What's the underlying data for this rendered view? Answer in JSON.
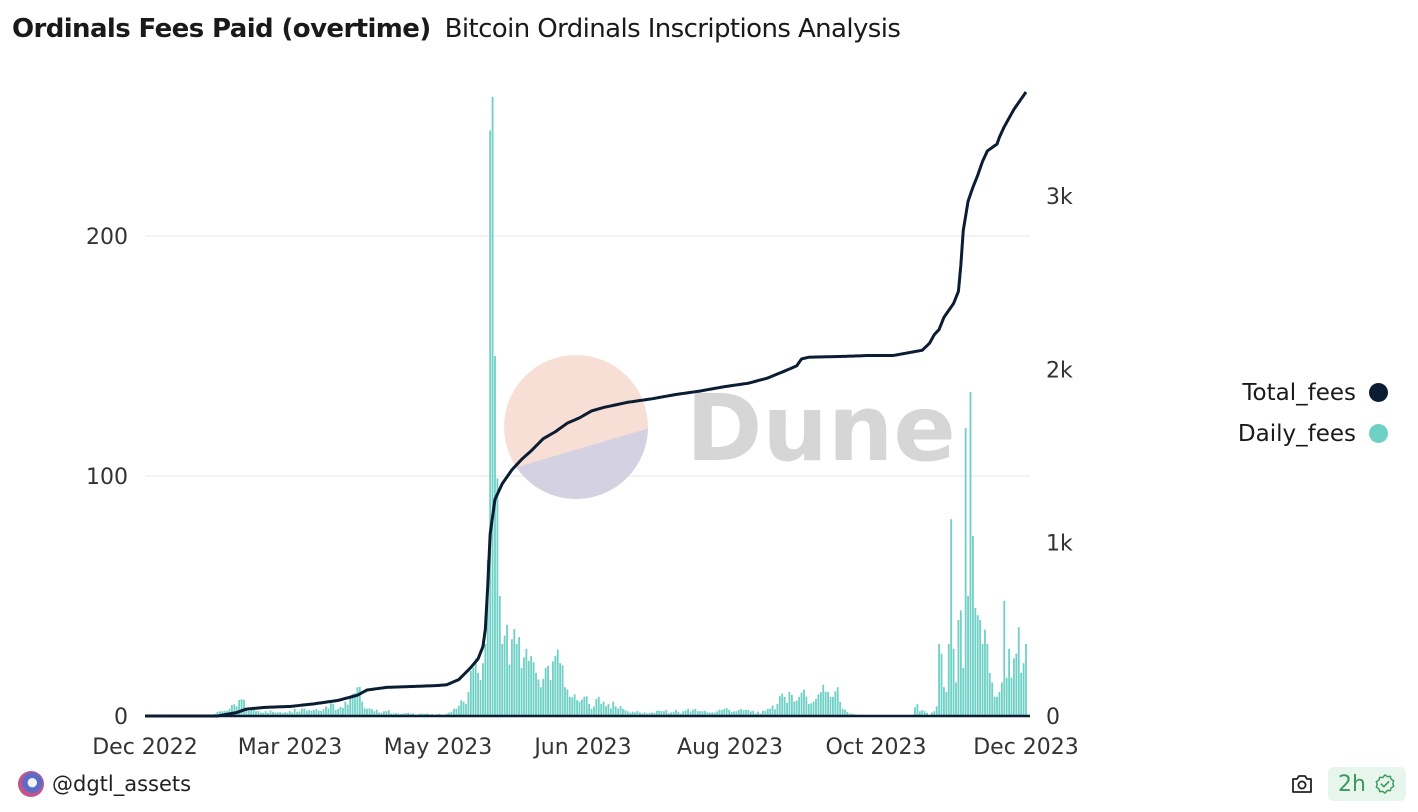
{
  "header": {
    "title": "Ordinals Fees Paid (overtime)",
    "subtitle": "Bitcoin Ordinals Inscriptions Analysis"
  },
  "footer": {
    "author": "@dgtl_assets",
    "freshness": "2h",
    "icons": [
      "avatar",
      "camera-icon",
      "verified-badge-icon"
    ]
  },
  "watermark": {
    "text": "Dune"
  },
  "colors": {
    "total_fees": "#0b1d33",
    "daily_fees": "#6fd0c6",
    "grid": "#ececec"
  },
  "chart_data": {
    "type": "bar+line",
    "title": "Ordinals Fees Paid (overtime)",
    "x_tick_labels": [
      "Dec 2022",
      "Mar 2023",
      "May 2023",
      "Jun 2023",
      "Aug 2023",
      "Oct 2023",
      "Dec 2023"
    ],
    "x_range": [
      "2022-12-01",
      "2023-12-01"
    ],
    "left_axis": {
      "ticks": [
        0,
        100,
        200
      ],
      "tick_labels": [
        "0",
        "100",
        "200"
      ],
      "range": [
        0,
        250
      ]
    },
    "right_axis": {
      "ticks": [
        0,
        1000,
        2000,
        3000
      ],
      "tick_labels": [
        "0",
        "1k",
        "2k",
        "3k"
      ],
      "range": [
        0,
        3600
      ]
    },
    "grid": true,
    "legend": {
      "position": "right",
      "entries": [
        "Total_fees",
        "Daily_fees"
      ]
    },
    "series": [
      {
        "name": "Daily_fees",
        "type": "bar",
        "axis": "left",
        "keyframes_day_value": [
          [
            0,
            0
          ],
          [
            20,
            0
          ],
          [
            28,
            0.5
          ],
          [
            32,
            2
          ],
          [
            35,
            3
          ],
          [
            38,
            4
          ],
          [
            40,
            7
          ],
          [
            42,
            3
          ],
          [
            46,
            2
          ],
          [
            50,
            2
          ],
          [
            55,
            1.5
          ],
          [
            60,
            2
          ],
          [
            65,
            3
          ],
          [
            70,
            2.5
          ],
          [
            75,
            4
          ],
          [
            78,
            5
          ],
          [
            80,
            3
          ],
          [
            83,
            6
          ],
          [
            85,
            8
          ],
          [
            88,
            12
          ],
          [
            90,
            6
          ],
          [
            92,
            3
          ],
          [
            95,
            2
          ],
          [
            100,
            2
          ],
          [
            105,
            1
          ],
          [
            110,
            1
          ],
          [
            115,
            1
          ],
          [
            120,
            0.5
          ],
          [
            125,
            1
          ],
          [
            128,
            3
          ],
          [
            132,
            6
          ],
          [
            134,
            10
          ],
          [
            136,
            20
          ],
          [
            137,
            24
          ],
          [
            138,
            18
          ],
          [
            139,
            15
          ],
          [
            140,
            22
          ],
          [
            141,
            30
          ],
          [
            142,
            65
          ],
          [
            143,
            244
          ],
          [
            144,
            258
          ],
          [
            145,
            150
          ],
          [
            146,
            99
          ],
          [
            147,
            50
          ],
          [
            148,
            30
          ],
          [
            150,
            38
          ],
          [
            152,
            32
          ],
          [
            154,
            30
          ],
          [
            156,
            20
          ],
          [
            158,
            28
          ],
          [
            160,
            25
          ],
          [
            162,
            18
          ],
          [
            164,
            12
          ],
          [
            166,
            20
          ],
          [
            168,
            15
          ],
          [
            170,
            25
          ],
          [
            172,
            22
          ],
          [
            174,
            12
          ],
          [
            176,
            8
          ],
          [
            178,
            9
          ],
          [
            180,
            6
          ],
          [
            182,
            8
          ],
          [
            184,
            5
          ],
          [
            186,
            4
          ],
          [
            188,
            8
          ],
          [
            190,
            6
          ],
          [
            192,
            5
          ],
          [
            195,
            4
          ],
          [
            198,
            3
          ],
          [
            200,
            2
          ],
          [
            205,
            1.5
          ],
          [
            208,
            1
          ],
          [
            210,
            1.5
          ],
          [
            215,
            2
          ],
          [
            218,
            1.5
          ],
          [
            220,
            2.5
          ],
          [
            222,
            1
          ],
          [
            225,
            3
          ],
          [
            230,
            2
          ],
          [
            235,
            1.5
          ],
          [
            240,
            3
          ],
          [
            245,
            2
          ],
          [
            250,
            2.5
          ],
          [
            255,
            1
          ],
          [
            258,
            3
          ],
          [
            262,
            5
          ],
          [
            265,
            8
          ],
          [
            267,
            10
          ],
          [
            269,
            6
          ],
          [
            271,
            8
          ],
          [
            273,
            11
          ],
          [
            275,
            5
          ],
          [
            277,
            6
          ],
          [
            279,
            9
          ],
          [
            281,
            13
          ],
          [
            283,
            10
          ],
          [
            285,
            8
          ],
          [
            287,
            12
          ],
          [
            289,
            3
          ],
          [
            292,
            1
          ],
          [
            295,
            0.5
          ],
          [
            300,
            0
          ],
          [
            310,
            0
          ],
          [
            318,
            0.5
          ],
          [
            320,
            5
          ],
          [
            321,
            2
          ],
          [
            323,
            2
          ],
          [
            325,
            0.5
          ],
          [
            327,
            2
          ],
          [
            328,
            4
          ],
          [
            329,
            30
          ],
          [
            330,
            26
          ],
          [
            331,
            12
          ],
          [
            332,
            10
          ],
          [
            333,
            30
          ],
          [
            334,
            82
          ],
          [
            335,
            28
          ],
          [
            336,
            14
          ],
          [
            337,
            40
          ],
          [
            338,
            44
          ],
          [
            339,
            20
          ],
          [
            340,
            120
          ],
          [
            341,
            50
          ],
          [
            342,
            135
          ],
          [
            343,
            75
          ],
          [
            344,
            45
          ],
          [
            345,
            42
          ],
          [
            346,
            40
          ],
          [
            347,
            30
          ],
          [
            348,
            36
          ],
          [
            349,
            30
          ],
          [
            350,
            18
          ],
          [
            351,
            14
          ],
          [
            352,
            8
          ],
          [
            353,
            8
          ],
          [
            354,
            10
          ],
          [
            355,
            14
          ],
          [
            356,
            48
          ],
          [
            357,
            16
          ],
          [
            358,
            28
          ],
          [
            359,
            16
          ],
          [
            360,
            24
          ],
          [
            361,
            26
          ],
          [
            362,
            37
          ],
          [
            363,
            18
          ],
          [
            364,
            22
          ],
          [
            365,
            30
          ]
        ]
      },
      {
        "name": "Total_fees",
        "type": "line",
        "axis": "right",
        "keyframes_day_value": [
          [
            0,
            0
          ],
          [
            30,
            0
          ],
          [
            38,
            20
          ],
          [
            42,
            40
          ],
          [
            50,
            50
          ],
          [
            60,
            55
          ],
          [
            70,
            70
          ],
          [
            80,
            90
          ],
          [
            88,
            120
          ],
          [
            92,
            150
          ],
          [
            100,
            165
          ],
          [
            110,
            170
          ],
          [
            120,
            175
          ],
          [
            125,
            180
          ],
          [
            130,
            210
          ],
          [
            135,
            280
          ],
          [
            138,
            330
          ],
          [
            140,
            400
          ],
          [
            141,
            500
          ],
          [
            142,
            750
          ],
          [
            143,
            1050
          ],
          [
            144,
            1150
          ],
          [
            145,
            1250
          ],
          [
            148,
            1340
          ],
          [
            152,
            1420
          ],
          [
            156,
            1480
          ],
          [
            160,
            1530
          ],
          [
            165,
            1600
          ],
          [
            170,
            1640
          ],
          [
            175,
            1690
          ],
          [
            180,
            1720
          ],
          [
            185,
            1760
          ],
          [
            190,
            1780
          ],
          [
            195,
            1795
          ],
          [
            200,
            1810
          ],
          [
            210,
            1830
          ],
          [
            220,
            1855
          ],
          [
            230,
            1875
          ],
          [
            240,
            1900
          ],
          [
            250,
            1920
          ],
          [
            258,
            1950
          ],
          [
            265,
            1990
          ],
          [
            270,
            2020
          ],
          [
            272,
            2060
          ],
          [
            275,
            2070
          ],
          [
            290,
            2075
          ],
          [
            300,
            2080
          ],
          [
            310,
            2080
          ],
          [
            318,
            2100
          ],
          [
            322,
            2110
          ],
          [
            325,
            2150
          ],
          [
            327,
            2200
          ],
          [
            329,
            2230
          ],
          [
            331,
            2300
          ],
          [
            333,
            2340
          ],
          [
            335,
            2380
          ],
          [
            337,
            2450
          ],
          [
            338,
            2600
          ],
          [
            339,
            2800
          ],
          [
            341,
            2970
          ],
          [
            343,
            3050
          ],
          [
            345,
            3120
          ],
          [
            347,
            3200
          ],
          [
            349,
            3260
          ],
          [
            351,
            3280
          ],
          [
            353,
            3300
          ],
          [
            354,
            3340
          ],
          [
            356,
            3400
          ],
          [
            358,
            3450
          ],
          [
            360,
            3500
          ],
          [
            362,
            3540
          ],
          [
            365,
            3600
          ]
        ]
      }
    ]
  }
}
